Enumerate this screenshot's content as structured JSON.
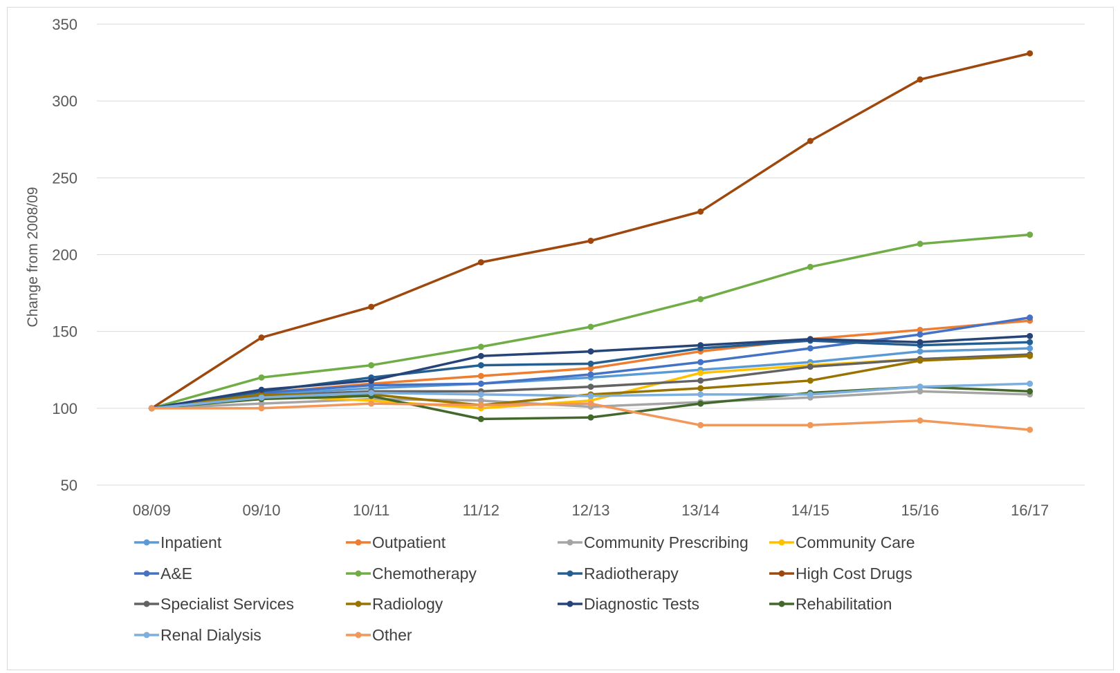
{
  "chart_data": {
    "type": "line",
    "title": "",
    "xlabel": "",
    "ylabel": "Change from 2008/09",
    "ylim": [
      50,
      350
    ],
    "yticks": [
      50,
      100,
      150,
      200,
      250,
      300,
      350
    ],
    "grid": true,
    "legend_position": "bottom",
    "categories": [
      "08/09",
      "09/10",
      "10/11",
      "11/12",
      "12/13",
      "13/14",
      "14/15",
      "15/16",
      "16/17"
    ],
    "series": [
      {
        "name": "Inpatient",
        "color": "#5b9bd5",
        "values": [
          100,
          109,
          113,
          116,
          120,
          125,
          130,
          137,
          139
        ]
      },
      {
        "name": "Outpatient",
        "color": "#ed7d31",
        "values": [
          100,
          110,
          116,
          121,
          126,
          137,
          145,
          151,
          157
        ]
      },
      {
        "name": "Community Prescribing",
        "color": "#a5a5a5",
        "values": [
          100,
          103,
          106,
          105,
          101,
          104,
          107,
          111,
          109
        ]
      },
      {
        "name": "Community Care",
        "color": "#ffc000",
        "values": [
          100,
          108,
          105,
          100,
          105,
          123,
          128,
          132,
          134
        ]
      },
      {
        "name": "A&E",
        "color": "#4472c4",
        "values": [
          100,
          110,
          115,
          116,
          122,
          130,
          139,
          148,
          159
        ]
      },
      {
        "name": "Chemotherapy",
        "color": "#70ad47",
        "values": [
          100,
          120,
          128,
          140,
          153,
          171,
          192,
          207,
          213
        ]
      },
      {
        "name": "Radiotherapy",
        "color": "#255e91",
        "values": [
          100,
          111,
          120,
          128,
          129,
          139,
          144,
          141,
          143
        ]
      },
      {
        "name": "High Cost Drugs",
        "color": "#9e480e",
        "values": [
          100,
          146,
          166,
          195,
          209,
          228,
          274,
          314,
          331
        ]
      },
      {
        "name": "Specialist Services",
        "color": "#636363",
        "values": [
          100,
          108,
          111,
          111,
          114,
          118,
          127,
          132,
          135
        ]
      },
      {
        "name": "Radiology",
        "color": "#997300",
        "values": [
          100,
          109,
          109,
          102,
          109,
          113,
          118,
          131,
          134
        ]
      },
      {
        "name": "Diagnostic Tests",
        "color": "#264478",
        "values": [
          100,
          112,
          118,
          134,
          137,
          141,
          145,
          143,
          147
        ]
      },
      {
        "name": "Rehabilitation",
        "color": "#43682b",
        "values": [
          100,
          106,
          108,
          93,
          94,
          103,
          110,
          114,
          111
        ]
      },
      {
        "name": "Renal Dialysis",
        "color": "#7cafdd",
        "values": [
          100,
          107,
          110,
          109,
          108,
          109,
          109,
          114,
          116
        ]
      },
      {
        "name": "Other",
        "color": "#f1975a",
        "values": [
          100,
          100,
          103,
          102,
          103,
          89,
          89,
          92,
          86
        ]
      }
    ]
  }
}
